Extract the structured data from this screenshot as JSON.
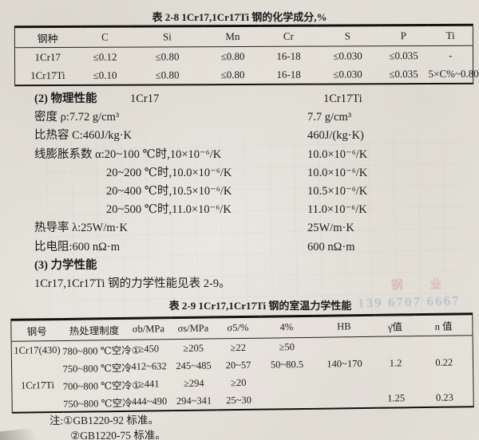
{
  "table_2_8": {
    "title": "表 2-8   1Cr17,1Cr17Ti 钢的化学成分,%",
    "headers": [
      "钢种",
      "C",
      "Si",
      "Mn",
      "Cr",
      "S",
      "P",
      "Ti"
    ],
    "rows": [
      [
        "1Cr17",
        "≤0.12",
        "≤0.80",
        "≤0.80",
        "16-18",
        "≤0.030",
        "≤0.035",
        "-"
      ],
      [
        "1Cr17Ti",
        "≤0.10",
        "≤0.80",
        "≤0.80",
        "16-18",
        "≤0.030",
        "≤0.035",
        "5×C%~0.80"
      ]
    ]
  },
  "physical_properties": {
    "heading": "(2) 物理性能",
    "column1_title": "1Cr17",
    "column2_title": "1Cr17Ti",
    "lines": [
      {
        "label": "密度 ρ:7.72 g/cm³",
        "value": "7.7 g/cm³",
        "indent": false
      },
      {
        "label": "比热容 C:460J/kg·K",
        "value": "460J/(kg·K)",
        "indent": false
      },
      {
        "label": "线膨胀系数 α:20~100 ℃时,10×10⁻⁶/K",
        "value": "10.0×10⁻⁶/K",
        "indent": false
      },
      {
        "label": "20~200 ℃时,10.0×10⁻⁶/K",
        "value": "10.0×10⁻⁶/K",
        "indent": true
      },
      {
        "label": "20~400 ℃时,10.5×10⁻⁶/K",
        "value": "10.5×10⁻⁶/K",
        "indent": true
      },
      {
        "label": "20~500 ℃时,11.0×10⁻⁶/K",
        "value": "11.0×10⁻⁶/K",
        "indent": true
      },
      {
        "label": "热导率 λ:25W/m·K",
        "value": "25W/m·K",
        "indent": false
      },
      {
        "label": "比电阻:600 nΩ·m",
        "value": "600 nΩ·m",
        "indent": false
      }
    ]
  },
  "mechanical_section": {
    "heading": "(3) 力学性能",
    "text": "1Cr17,1Cr17Ti 钢的力学性能见表 2-9。"
  },
  "table_2_9": {
    "title": "表 2-9   1Cr17,1Cr17Ti 钢的室温力学性能",
    "headers": [
      "钢号",
      "热处理制度",
      "σb/MPa",
      "σs/MPa",
      "σ5/%",
      "4%",
      "HB",
      "γ̄值",
      "n 值"
    ],
    "rows": [
      [
        "1Cr17(430)",
        "780~800 ℃空冷①",
        "≥450",
        "≥205",
        "≥22",
        "≥50",
        "",
        "",
        ""
      ],
      [
        "",
        "750~800 ℃空冷",
        "412~632",
        "245~485",
        "20~57",
        "50~80.5",
        "140~170",
        "1.2",
        "0.22"
      ],
      [
        "1Cr17Ti",
        "700~800 ℃空冷①",
        "≥441",
        "≥294",
        "≥20",
        "",
        "",
        "",
        ""
      ],
      [
        "",
        "750~800 ℃空冷",
        "444~490",
        "294~341",
        "25~30",
        "",
        "",
        "1.25",
        "0.23"
      ]
    ]
  },
  "notes": {
    "line1": "注:①GB1220-92  标准。",
    "line2": "②GB1220-75  标准。"
  },
  "watermark": {
    "line1": "钢 业",
    "line2": "139 6707 6667"
  }
}
